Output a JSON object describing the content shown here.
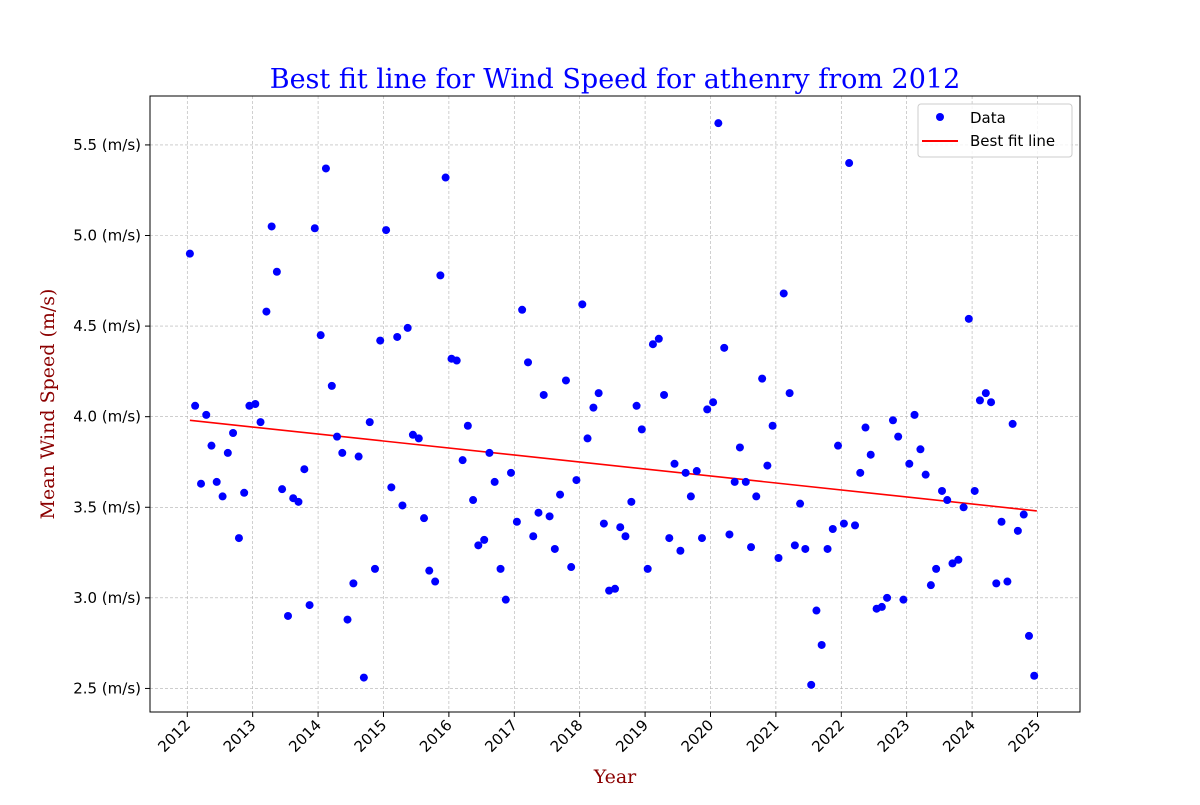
{
  "chart_data": {
    "type": "scatter",
    "title": "Best fit line for Wind Speed for athenry from 2012",
    "xlabel": "Year",
    "ylabel": "Mean Wind Speed (m/s)",
    "xlim": [
      2011.43,
      2025.65
    ],
    "ylim": [
      2.37,
      5.77
    ],
    "x_ticks": [
      2012,
      2013,
      2014,
      2015,
      2016,
      2017,
      2018,
      2019,
      2020,
      2021,
      2022,
      2023,
      2024,
      2025
    ],
    "x_tick_labels": [
      "2012",
      "2013",
      "2014",
      "2015",
      "2016",
      "2017",
      "2018",
      "2019",
      "2020",
      "2021",
      "2022",
      "2023",
      "2024",
      "2025"
    ],
    "y_ticks": [
      2.5,
      3.0,
      3.5,
      4.0,
      4.5,
      5.0,
      5.5
    ],
    "y_tick_labels": [
      "2.5 (m/s)",
      "3.0 (m/s)",
      "3.5 (m/s)",
      "4.0 (m/s)",
      "4.5 (m/s)",
      "5.0 (m/s)",
      "5.5 (m/s)"
    ],
    "grid": true,
    "legend_position": "top-right",
    "colors": {
      "title": "#0000ff",
      "axis_label": "#8b0000",
      "data": "#0000ff",
      "fit": "#ff0000",
      "grid": "#b0b0b0"
    },
    "series": [
      {
        "name": "Data",
        "kind": "scatter",
        "x": [
          2012.04,
          2012.12,
          2012.21,
          2012.29,
          2012.37,
          2012.45,
          2012.54,
          2012.62,
          2012.7,
          2012.79,
          2012.87,
          2012.95,
          2013.04,
          2013.12,
          2013.21,
          2013.29,
          2013.37,
          2013.45,
          2013.54,
          2013.62,
          2013.7,
          2013.79,
          2013.87,
          2013.95,
          2014.04,
          2014.12,
          2014.21,
          2014.29,
          2014.37,
          2014.45,
          2014.54,
          2014.62,
          2014.7,
          2014.79,
          2014.87,
          2014.95,
          2015.04,
          2015.12,
          2015.21,
          2015.29,
          2015.37,
          2015.45,
          2015.54,
          2015.62,
          2015.7,
          2015.79,
          2015.87,
          2015.95,
          2016.04,
          2016.12,
          2016.21,
          2016.29,
          2016.37,
          2016.45,
          2016.54,
          2016.62,
          2016.7,
          2016.79,
          2016.87,
          2016.95,
          2017.04,
          2017.12,
          2017.21,
          2017.29,
          2017.37,
          2017.45,
          2017.54,
          2017.62,
          2017.7,
          2017.79,
          2017.87,
          2017.95,
          2018.04,
          2018.12,
          2018.21,
          2018.29,
          2018.37,
          2018.45,
          2018.54,
          2018.62,
          2018.7,
          2018.79,
          2018.87,
          2018.95,
          2019.04,
          2019.12,
          2019.21,
          2019.29,
          2019.37,
          2019.45,
          2019.54,
          2019.62,
          2019.7,
          2019.79,
          2019.87,
          2019.95,
          2020.04,
          2020.12,
          2020.21,
          2020.29,
          2020.37,
          2020.45,
          2020.54,
          2020.62,
          2020.7,
          2020.79,
          2020.87,
          2020.95,
          2021.04,
          2021.12,
          2021.21,
          2021.29,
          2021.37,
          2021.45,
          2021.54,
          2021.62,
          2021.7,
          2021.79,
          2021.87,
          2021.95,
          2022.04,
          2022.12,
          2022.21,
          2022.29,
          2022.37,
          2022.45,
          2022.54,
          2022.62,
          2022.7,
          2022.79,
          2022.87,
          2022.95,
          2023.04,
          2023.12,
          2023.21,
          2023.29,
          2023.37,
          2023.45,
          2023.54,
          2023.62,
          2023.7,
          2023.79,
          2023.87,
          2023.95,
          2024.04,
          2024.12,
          2024.21,
          2024.29,
          2024.37,
          2024.45,
          2024.54,
          2024.62,
          2024.7,
          2024.79,
          2024.87,
          2024.95
        ],
        "y": [
          4.9,
          4.06,
          3.63,
          4.01,
          3.84,
          3.64,
          3.56,
          3.8,
          3.91,
          3.33,
          3.58,
          4.06,
          4.07,
          3.97,
          4.58,
          5.05,
          4.8,
          3.6,
          2.9,
          3.55,
          3.53,
          3.71,
          2.96,
          5.04,
          4.45,
          5.37,
          4.17,
          3.89,
          3.8,
          2.88,
          3.08,
          3.78,
          2.56,
          3.97,
          3.16,
          4.42,
          5.03,
          3.61,
          4.44,
          3.51,
          4.49,
          3.9,
          3.88,
          3.44,
          3.15,
          3.09,
          4.78,
          5.32,
          4.32,
          4.31,
          3.76,
          3.95,
          3.54,
          3.29,
          3.32,
          3.8,
          3.64,
          3.16,
          2.99,
          3.69,
          3.42,
          4.59,
          4.3,
          3.34,
          3.47,
          4.12,
          3.45,
          3.27,
          3.57,
          4.2,
          3.17,
          3.65,
          4.62,
          3.88,
          4.05,
          4.13,
          3.41,
          3.04,
          3.05,
          3.39,
          3.34,
          3.53,
          4.06,
          3.93,
          3.16,
          4.4,
          4.43,
          4.12,
          3.33,
          3.74,
          3.26,
          3.69,
          3.56,
          3.7,
          3.33,
          4.04,
          4.08,
          5.62,
          4.38,
          3.35,
          3.64,
          3.83,
          3.64,
          3.28,
          3.56,
          4.21,
          3.73,
          3.95,
          3.22,
          4.68,
          4.13,
          3.29,
          3.52,
          3.27,
          2.52,
          2.93,
          2.74,
          3.27,
          3.38,
          3.84,
          3.41,
          5.4,
          3.4,
          3.69,
          3.94,
          3.79,
          2.94,
          2.95,
          3.0,
          3.98,
          3.89,
          2.99,
          3.74,
          4.01,
          3.82,
          3.68,
          3.07,
          3.16,
          3.59,
          3.54,
          3.19,
          3.21,
          3.5,
          4.54,
          3.59,
          4.09,
          4.13,
          4.08,
          3.08,
          3.42,
          3.09,
          3.96,
          3.37,
          3.46,
          2.79,
          2.57
        ]
      },
      {
        "name": "Best fit line",
        "kind": "line",
        "x": [
          2012.04,
          2024.99
        ],
        "y": [
          3.98,
          3.48
        ]
      }
    ]
  }
}
